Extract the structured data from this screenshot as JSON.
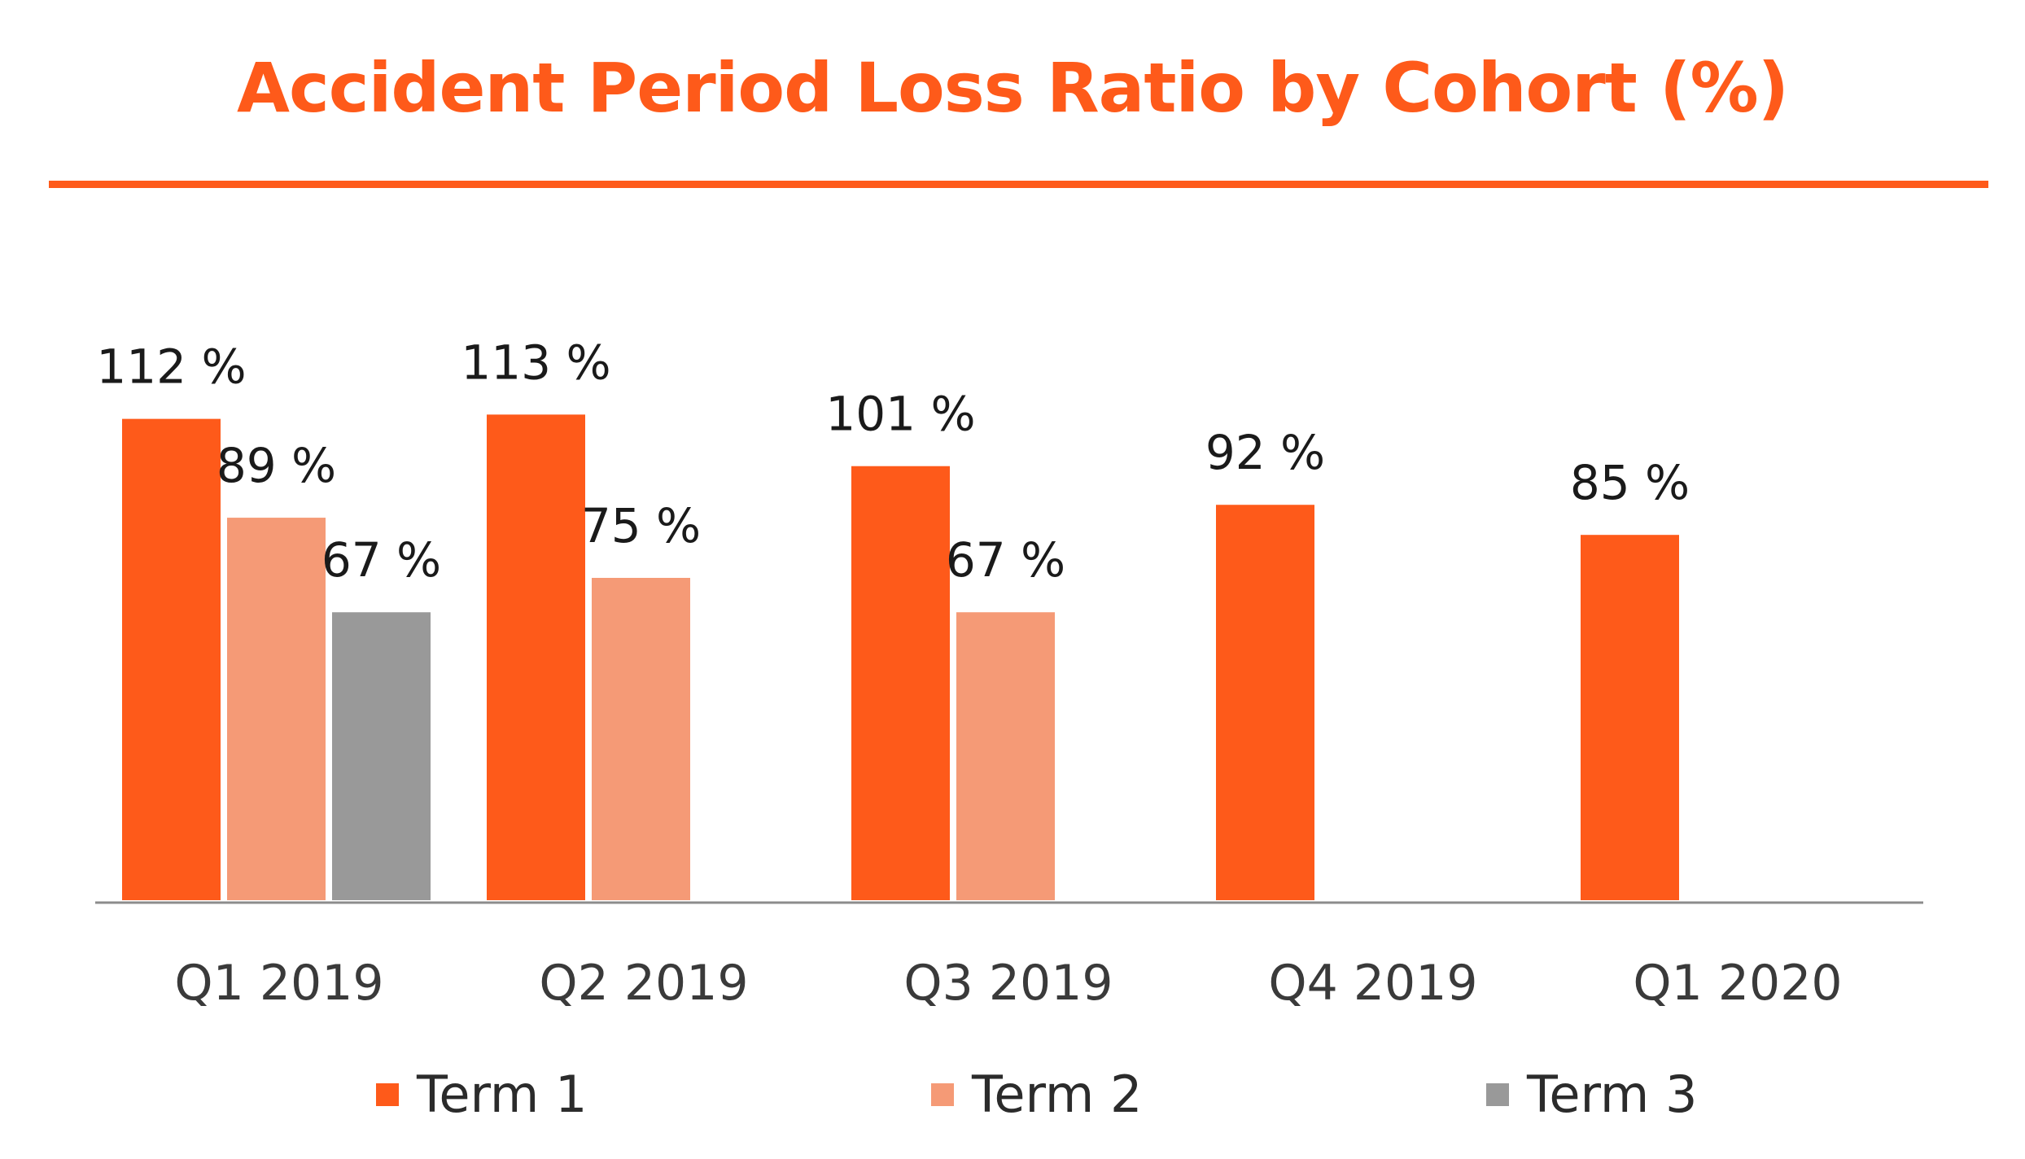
{
  "chart_data": {
    "type": "bar",
    "title": "Accident Period Loss Ratio by Cohort (%)",
    "xlabel": "",
    "ylabel": "",
    "ylim": [
      0,
      130
    ],
    "grid": false,
    "legend_position": "bottom",
    "categories": [
      "Q1 2019",
      "Q2 2019",
      "Q3 2019",
      "Q4 2019",
      "Q1 2020"
    ],
    "series": [
      {
        "name": "Term 1",
        "color": "#fe5a1a",
        "values": [
          112,
          113,
          101,
          92,
          85
        ],
        "labels": [
          "112 %",
          "113 %",
          "101 %",
          "92 %",
          "85 %"
        ]
      },
      {
        "name": "Term 2",
        "color": "#f59a76",
        "values": [
          89,
          75,
          67,
          null,
          null
        ],
        "labels": [
          "89 %",
          "75 %",
          "67 %",
          null,
          null
        ]
      },
      {
        "name": "Term 3",
        "color": "#999999",
        "values": [
          67,
          null,
          null,
          null,
          null
        ],
        "labels": [
          "67 %",
          null,
          null,
          null,
          null
        ]
      }
    ]
  }
}
